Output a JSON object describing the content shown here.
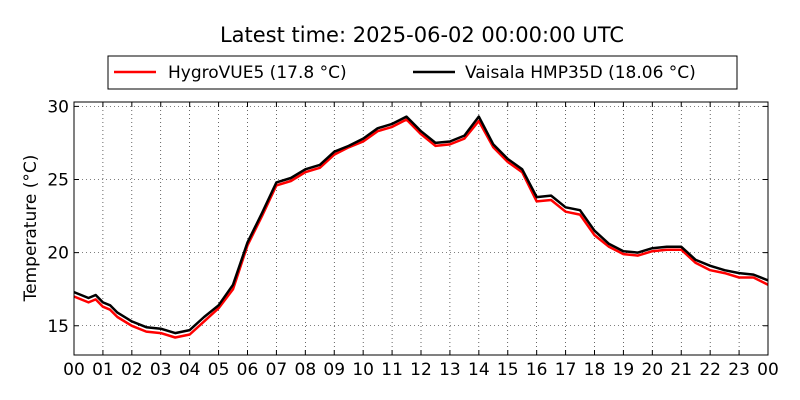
{
  "chart_data": {
    "type": "line",
    "title": "Latest time: 2025-06-02 00:00:00 UTC",
    "xlabel": "",
    "ylabel": "Temperature (°C)",
    "xlim": [
      0,
      24
    ],
    "ylim": [
      13,
      30.3
    ],
    "x_ticks": [
      0,
      1,
      2,
      3,
      4,
      5,
      6,
      7,
      8,
      9,
      10,
      11,
      12,
      13,
      14,
      15,
      16,
      17,
      18,
      19,
      20,
      21,
      22,
      23,
      24
    ],
    "x_tick_labels": [
      "00",
      "01",
      "02",
      "03",
      "04",
      "05",
      "06",
      "07",
      "08",
      "09",
      "10",
      "11",
      "12",
      "13",
      "14",
      "15",
      "16",
      "17",
      "18",
      "19",
      "20",
      "21",
      "22",
      "23",
      "00"
    ],
    "y_ticks": [
      15,
      20,
      25,
      30
    ],
    "y_tick_labels": [
      "15",
      "20",
      "25",
      "30"
    ],
    "grid": true,
    "legend_position": "top-center",
    "x_hours": [
      0,
      0.5,
      0.75,
      1,
      1.25,
      1.5,
      2,
      2.5,
      3,
      3.5,
      4,
      4.5,
      5,
      5.5,
      6,
      6.5,
      7,
      7.5,
      8,
      8.5,
      9,
      9.5,
      10,
      10.5,
      11,
      11.5,
      12,
      12.5,
      13,
      13.5,
      14,
      14.5,
      15,
      15.5,
      16,
      16.5,
      17,
      17.5,
      18,
      18.5,
      19,
      19.5,
      20,
      20.5,
      21,
      21.5,
      22,
      22.5,
      23,
      23.5,
      24
    ],
    "series": [
      {
        "name": "HygroVUE5 (17.8 °C)",
        "color": "#ff0000",
        "values": [
          17.0,
          16.6,
          16.8,
          16.3,
          16.1,
          15.6,
          15.0,
          14.6,
          14.5,
          14.2,
          14.4,
          15.3,
          16.2,
          17.5,
          20.5,
          22.5,
          24.6,
          24.9,
          25.5,
          25.8,
          26.7,
          27.2,
          27.6,
          28.3,
          28.6,
          29.1,
          28.1,
          27.3,
          27.4,
          27.8,
          29.0,
          27.2,
          26.2,
          25.5,
          23.5,
          23.6,
          22.8,
          22.6,
          21.2,
          20.4,
          19.9,
          19.8,
          20.1,
          20.2,
          20.2,
          19.3,
          18.8,
          18.6,
          18.3,
          18.3,
          17.8
        ]
      },
      {
        "name": "Vaisala HMP35D (18.06 °C)",
        "color": "#000000",
        "values": [
          17.3,
          16.9,
          17.1,
          16.6,
          16.4,
          15.9,
          15.3,
          14.9,
          14.8,
          14.5,
          14.7,
          15.6,
          16.4,
          17.8,
          20.7,
          22.7,
          24.8,
          25.1,
          25.7,
          26.0,
          26.9,
          27.3,
          27.8,
          28.5,
          28.8,
          29.3,
          28.3,
          27.5,
          27.6,
          28.0,
          29.3,
          27.4,
          26.4,
          25.7,
          23.8,
          23.9,
          23.1,
          22.9,
          21.5,
          20.6,
          20.1,
          20.0,
          20.3,
          20.4,
          20.4,
          19.5,
          19.1,
          18.8,
          18.6,
          18.5,
          18.1
        ]
      }
    ]
  }
}
